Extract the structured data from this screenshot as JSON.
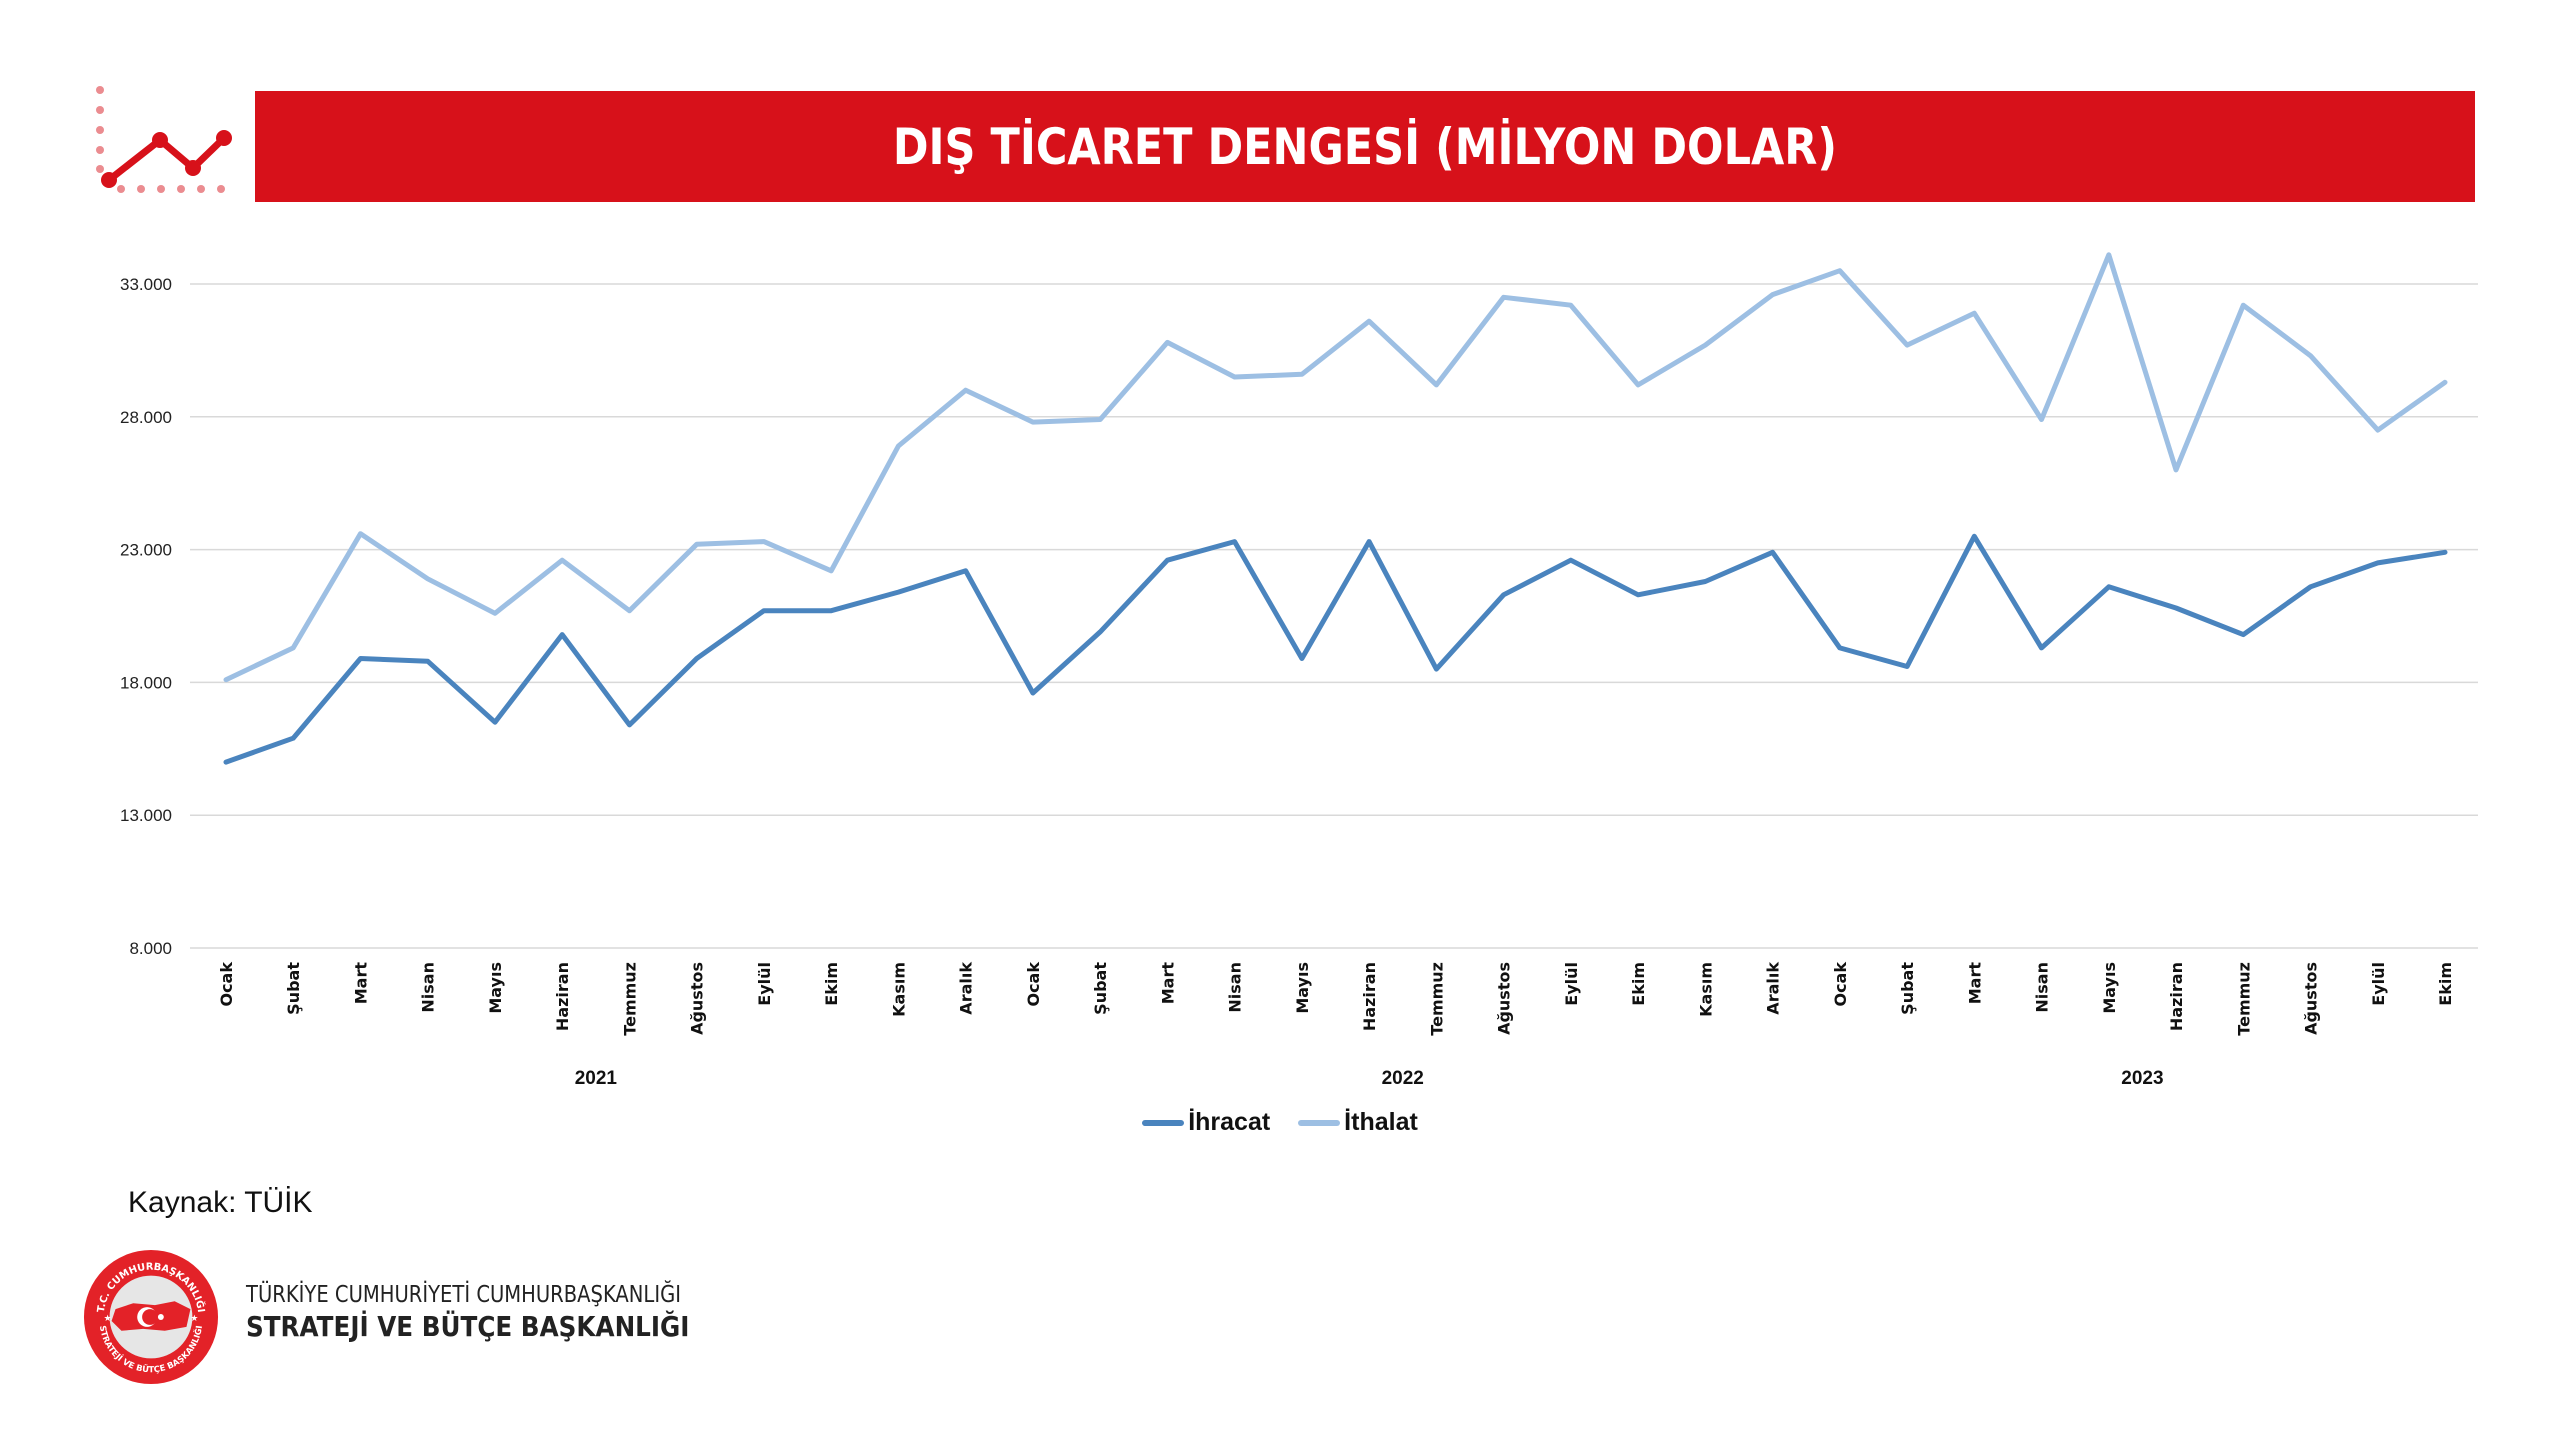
{
  "header": {
    "title": "DIŞ TİCARET DENGESİ (MİLYON DOLAR)",
    "icon": "line-chart-icon",
    "accent_color": "#D7111A"
  },
  "chart_data": {
    "type": "line",
    "title": "DIŞ TİCARET DENGESİ (MİLYON DOLAR)",
    "xlabel": "",
    "ylabel": "",
    "ylim": [
      8000,
      33000
    ],
    "yticks": [
      8000,
      13000,
      18000,
      23000,
      28000,
      33000
    ],
    "ytick_labels": [
      "8.000",
      "13.000",
      "18.000",
      "23.000",
      "28.000",
      "33.000"
    ],
    "grid": true,
    "legend_position": "bottom",
    "categories": [
      "Ocak",
      "Şubat",
      "Mart",
      "Nisan",
      "Mayıs",
      "Haziran",
      "Temmuz",
      "Ağustos",
      "Eylül",
      "Ekim",
      "Kasım",
      "Aralık",
      "Ocak",
      "Şubat",
      "Mart",
      "Nisan",
      "Mayıs",
      "Haziran",
      "Temmuz",
      "Ağustos",
      "Eylül",
      "Ekim",
      "Kasım",
      "Aralık",
      "Ocak",
      "Şubat",
      "Mart",
      "Nisan",
      "Mayıs",
      "Haziran",
      "Temmuz",
      "Ağustos",
      "Eylül",
      "Ekim"
    ],
    "year_groups": [
      {
        "label": "2021",
        "start": 0,
        "end": 11
      },
      {
        "label": "2022",
        "start": 12,
        "end": 23
      },
      {
        "label": "2023",
        "start": 24,
        "end": 33
      }
    ],
    "series": [
      {
        "name": "İhracat",
        "color": "#4A84BE",
        "values": [
          15000,
          15900,
          18900,
          18800,
          16500,
          19800,
          16400,
          18900,
          20700,
          20700,
          21400,
          22200,
          17600,
          19900,
          22600,
          23300,
          18900,
          23300,
          18500,
          21300,
          22600,
          21300,
          21800,
          22900,
          19300,
          18600,
          23500,
          19300,
          21600,
          20800,
          19800,
          21600,
          22500,
          22900
        ]
      },
      {
        "name": "İthalat",
        "color": "#9DBFE3",
        "values": [
          18100,
          19300,
          23600,
          21900,
          20600,
          22600,
          20700,
          23200,
          23300,
          22200,
          26900,
          29000,
          27800,
          27900,
          30800,
          29500,
          29600,
          31600,
          29200,
          32500,
          32200,
          29200,
          30700,
          32600,
          33500,
          30700,
          31900,
          27900,
          34100,
          26000,
          32200,
          30300,
          27500,
          29300
        ]
      }
    ]
  },
  "footer": {
    "source": "Kaynak: TÜİK",
    "org_line1": "TÜRKİYE CUMHURİYETİ CUMHURBAŞKANLIĞI",
    "org_line2": "STRATEJİ VE BÜTÇE BAŞKANLIĞI",
    "logo_top_text": "T.C. CUMHURBAŞKANLIĞI",
    "logo_bottom_text": "STRATEJİ VE BÜTÇE BAŞKANLIĞI",
    "logo_icon": "turkey-map-emblem-icon"
  }
}
